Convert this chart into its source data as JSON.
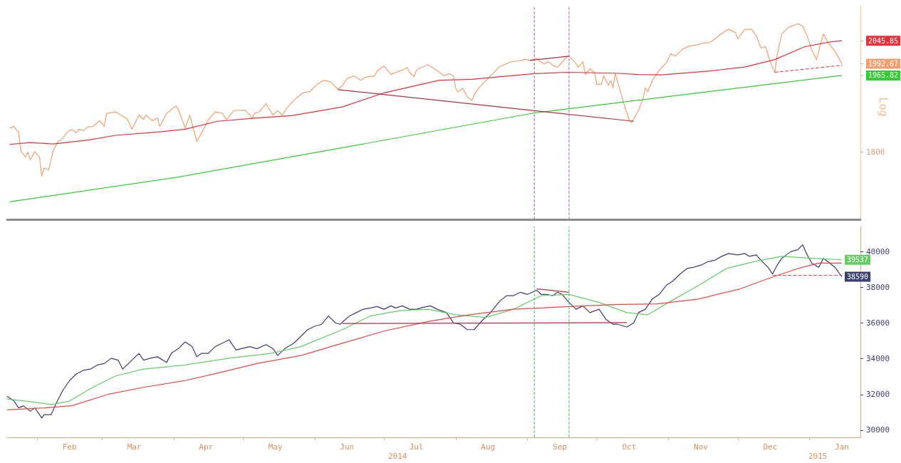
{
  "chart_data": [
    {
      "type": "line",
      "log": true,
      "ylabel": "Log",
      "xlim": [
        "2014-01-19",
        "2015-01-23"
      ],
      "ylim": [
        1666,
        2130
      ],
      "yticks": [
        1800,
        1965.82,
        1992.67,
        2045.85
      ],
      "tick_labels": "y",
      "ref_lines": [
        {
          "axis": "x",
          "value": "2014-09-04",
          "color": "#9966aa",
          "line_style": "dashed"
        },
        {
          "axis": "x",
          "value": "2014-09-19",
          "color": "#9966aa",
          "line_style": "dashed"
        }
      ],
      "series": [
        {
          "color": "#f0a070",
          "x": [
            "2014-01-20",
            "2014-01-22",
            "2014-01-24",
            "2014-01-25",
            "2014-01-27",
            "2014-01-28",
            "2014-01-29",
            "2014-01-31",
            "2014-02-02",
            "2014-02-03",
            "2014-02-04",
            "2014-02-06",
            "2014-02-08",
            "2014-02-10",
            "2014-02-12",
            "2014-02-14",
            "2014-02-16",
            "2014-02-18",
            "2014-02-19",
            "2014-02-21",
            "2014-02-23",
            "2014-02-25",
            "2014-02-28",
            "2014-03-02",
            "2014-03-03",
            "2014-03-07",
            "2014-03-10",
            "2014-03-12",
            "2014-03-14",
            "2014-03-17",
            "2014-03-19",
            "2014-03-20",
            "2014-03-23",
            "2014-03-25",
            "2014-03-26",
            "2014-03-29",
            "2014-04-02",
            "2014-04-03",
            "2014-04-06",
            "2014-04-08",
            "2014-04-11",
            "2014-04-14",
            "2014-04-16",
            "2014-04-19",
            "2014-04-22",
            "2014-04-24",
            "2014-04-27",
            "2014-05-02",
            "2014-05-05",
            "2014-05-06",
            "2014-05-08",
            "2014-05-11",
            "2014-05-14",
            "2014-05-16",
            "2014-05-18",
            "2014-05-20",
            "2014-05-24",
            "2014-05-27",
            "2014-05-30",
            "2014-06-02",
            "2014-06-05",
            "2014-06-08",
            "2014-06-11",
            "2014-06-13",
            "2014-06-15",
            "2014-06-18",
            "2014-06-21",
            "2014-06-23",
            "2014-06-27",
            "2014-06-28",
            "2014-07-01",
            "2014-07-04",
            "2014-07-06",
            "2014-07-09",
            "2014-07-11",
            "2014-07-12",
            "2014-07-14",
            "2014-07-15",
            "2014-07-17",
            "2014-07-20",
            "2014-07-22",
            "2014-07-25",
            "2014-07-27",
            "2014-07-29",
            "2014-07-31",
            "2014-08-01",
            "2014-08-02",
            "2014-08-04",
            "2014-08-06",
            "2014-08-08",
            "2014-08-09",
            "2014-08-11",
            "2014-08-14",
            "2014-08-17",
            "2014-08-20",
            "2014-08-25",
            "2014-08-29",
            "2014-08-31",
            "2014-09-02",
            "2014-09-05",
            "2014-09-08",
            "2014-09-10",
            "2014-09-12",
            "2014-09-14",
            "2014-09-18",
            "2014-09-19",
            "2014-09-22",
            "2014-09-23",
            "2014-09-25",
            "2014-09-26",
            "2014-09-28",
            "2014-09-30",
            "2014-10-01",
            "2014-10-03",
            "2014-10-04",
            "2014-10-06",
            "2014-10-07",
            "2014-10-08",
            "2014-10-09",
            "2014-10-11",
            "2014-10-13",
            "2014-10-15",
            "2014-10-16",
            "2014-10-19",
            "2014-10-21",
            "2014-10-22",
            "2014-10-23",
            "2014-10-25",
            "2014-10-27",
            "2014-10-29",
            "2014-10-31",
            "2014-11-02",
            "2014-11-04",
            "2014-11-07",
            "2014-11-10",
            "2014-11-13",
            "2014-11-16",
            "2014-11-19",
            "2014-11-21",
            "2014-11-25",
            "2014-11-27",
            "2014-11-30",
            "2014-12-01",
            "2014-12-04",
            "2014-12-07",
            "2014-12-09",
            "2014-12-11",
            "2014-12-13",
            "2014-12-15",
            "2014-12-17",
            "2014-12-18",
            "2014-12-20",
            "2014-12-23",
            "2014-12-27",
            "2014-12-29",
            "2014-12-31",
            "2015-01-02",
            "2015-01-04",
            "2015-01-07",
            "2015-01-09",
            "2015-01-12",
            "2015-01-15"
          ],
          "values": [
            1850,
            1854,
            1840,
            1801,
            1790,
            1800,
            1784,
            1801,
            1790,
            1751,
            1767,
            1764,
            1804,
            1822,
            1828,
            1842,
            1848,
            1840,
            1848,
            1845,
            1853,
            1854,
            1866,
            1854,
            1882,
            1885,
            1876,
            1869,
            1848,
            1878,
            1869,
            1878,
            1866,
            1872,
            1854,
            1882,
            1898,
            1891,
            1851,
            1878,
            1822,
            1848,
            1868,
            1885,
            1882,
            1869,
            1888,
            1889,
            1872,
            1882,
            1885,
            1903,
            1878,
            1888,
            1878,
            1894,
            1915,
            1927,
            1930,
            1946,
            1955,
            1951,
            1935,
            1943,
            1959,
            1965,
            1955,
            1962,
            1965,
            1976,
            1987,
            1968,
            1973,
            1978,
            1984,
            1973,
            1963,
            1978,
            1984,
            1990,
            1984,
            1973,
            1965,
            1970,
            1965,
            1937,
            1929,
            1937,
            1918,
            1910,
            1923,
            1938,
            1954,
            1970,
            1986,
            1997,
            2000,
            2003,
            2000,
            2005,
            1992,
            1997,
            1989,
            1984,
            2008,
            2010,
            1994,
            1984,
            1997,
            1968,
            1981,
            1973,
            1946,
            1946,
            1965,
            1944,
            1954,
            1938,
            1970,
            1934,
            1898,
            1868,
            1862,
            1888,
            1914,
            1938,
            1929,
            1954,
            1970,
            1984,
            1994,
            2016,
            2010,
            2026,
            2033,
            2036,
            2040,
            2042,
            2050,
            2067,
            2073,
            2065,
            2050,
            2073,
            2073,
            2057,
            2029,
            2032,
            1997,
            1973,
            2013,
            2062,
            2078,
            2086,
            2081,
            2057,
            2024,
            2002,
            2062,
            2042,
            2021,
            1992.67
          ]
        },
        {
          "color": "#e8303c",
          "x": [
            "2014-01-20",
            "2014-01-29",
            "2014-02-08",
            "2014-02-23",
            "2014-03-07",
            "2014-03-25",
            "2014-04-06",
            "2014-04-20",
            "2014-05-07",
            "2014-05-22",
            "2014-06-13",
            "2014-07-01",
            "2014-07-25",
            "2014-08-08",
            "2014-08-18",
            "2014-09-04",
            "2014-09-18",
            "2014-10-09",
            "2014-10-19",
            "2014-10-29",
            "2014-11-19",
            "2014-12-04",
            "2014-12-17",
            "2014-12-30",
            "2015-01-10",
            "2015-01-15"
          ],
          "values": [
            1816,
            1820,
            1817,
            1825,
            1835,
            1842,
            1848,
            1865,
            1872,
            1877,
            1896,
            1927,
            1955,
            1957,
            1962,
            1970,
            1973,
            1971,
            1968,
            1967,
            1976,
            1985,
            2002,
            2032,
            2043,
            2045.85
          ]
        },
        {
          "color": "#33cc33",
          "x": [
            "2014-01-20",
            "2014-04-03",
            "2014-06-13",
            "2014-09-04",
            "2014-11-19",
            "2015-01-15"
          ],
          "values": [
            1700,
            1749,
            1809,
            1883,
            1930,
            1965.82
          ]
        },
        {
          "color": "#b03040",
          "x": [
            "2014-06-11",
            "2014-10-17"
          ],
          "values": [
            1934,
            1865
          ]
        },
        {
          "color": "#b03040",
          "x": [
            "2014-09-02",
            "2014-09-19"
          ],
          "values": [
            2000,
            2010
          ]
        },
        {
          "color": "#e8303c",
          "line_style": "dashed",
          "x": [
            "2014-12-17",
            "2015-01-15"
          ],
          "values": [
            1973,
            1989
          ]
        }
      ]
    },
    {
      "type": "line",
      "xlim": [
        "2014-01-19",
        "2015-01-23"
      ],
      "ylim": [
        29600,
        41400
      ],
      "yticks": [
        30000,
        32000,
        34000,
        36000,
        38000,
        40000
      ],
      "xticks": [
        {
          "value": "2014-02-01",
          "label": null
        },
        {
          "value": "2014-02-15",
          "label": "Feb"
        },
        {
          "value": "2014-03-01",
          "label": null
        },
        {
          "value": "2014-03-15",
          "label": "Mar"
        },
        {
          "value": "2014-04-01",
          "label": null
        },
        {
          "value": "2014-04-15",
          "label": "Apr"
        },
        {
          "value": "2014-05-01",
          "label": null
        },
        {
          "value": "2014-05-15",
          "label": "May"
        },
        {
          "value": "2014-06-01",
          "label": null
        },
        {
          "value": "2014-06-15",
          "label": "Jun"
        },
        {
          "value": "2014-07-01",
          "label": null
        },
        {
          "value": "2014-07-15",
          "label": "Jul"
        },
        {
          "value": "2014-08-01",
          "label": null
        },
        {
          "value": "2014-08-15",
          "label": "Aug"
        },
        {
          "value": "2014-09-01",
          "label": null
        },
        {
          "value": "2014-09-15",
          "label": "Sep"
        },
        {
          "value": "2014-10-01",
          "label": null
        },
        {
          "value": "2014-10-15",
          "label": "Oct"
        },
        {
          "value": "2014-11-01",
          "label": null
        },
        {
          "value": "2014-11-15",
          "label": "Nov"
        },
        {
          "value": "2014-12-01",
          "label": null
        },
        {
          "value": "2014-12-15",
          "label": "Dec"
        },
        {
          "value": "2015-01-01",
          "label": null
        },
        {
          "value": "2015-01-15",
          "label": "Jan"
        }
      ],
      "annotations": [
        "2014",
        "2015"
      ],
      "ref_lines": [
        {
          "axis": "x",
          "value": "2014-09-04",
          "color": "#44bb66",
          "line_style": "dashed"
        },
        {
          "axis": "x",
          "value": "2014-09-19",
          "color": "#44bb66",
          "line_style": "dashed"
        }
      ],
      "series": [
        {
          "color": "#3b3f70",
          "x": [
            "2014-01-19",
            "2014-01-22",
            "2014-01-24",
            "2014-01-26",
            "2014-01-29",
            "2014-01-31",
            "2014-02-03",
            "2014-02-04",
            "2014-02-07",
            "2014-02-09",
            "2014-02-12",
            "2014-02-15",
            "2014-02-18",
            "2014-02-21",
            "2014-02-24",
            "2014-02-27",
            "2014-03-02",
            "2014-03-05",
            "2014-03-08",
            "2014-03-10",
            "2014-03-13",
            "2014-03-17",
            "2014-03-19",
            "2014-03-22",
            "2014-03-25",
            "2014-03-29",
            "2014-03-31",
            "2014-04-03",
            "2014-04-06",
            "2014-04-09",
            "2014-04-11",
            "2014-04-13",
            "2014-04-16",
            "2014-04-19",
            "2014-04-22",
            "2014-04-25",
            "2014-04-28",
            "2014-04-30",
            "2014-05-04",
            "2014-05-07",
            "2014-05-11",
            "2014-05-14",
            "2014-05-16",
            "2014-05-19",
            "2014-05-23",
            "2014-05-26",
            "2014-05-29",
            "2014-06-01",
            "2014-06-04",
            "2014-06-07",
            "2014-06-10",
            "2014-06-12",
            "2014-06-16",
            "2014-06-19",
            "2014-06-22",
            "2014-06-25",
            "2014-06-28",
            "2014-07-01",
            "2014-07-04",
            "2014-07-06",
            "2014-07-09",
            "2014-07-12",
            "2014-07-15",
            "2014-07-18",
            "2014-07-21",
            "2014-07-24",
            "2014-07-28",
            "2014-07-31",
            "2014-08-03",
            "2014-08-06",
            "2014-08-09",
            "2014-08-12",
            "2014-08-16",
            "2014-08-20",
            "2014-08-23",
            "2014-08-26",
            "2014-08-29",
            "2014-09-01",
            "2014-09-05",
            "2014-09-07",
            "2014-09-09",
            "2014-09-12",
            "2014-09-14",
            "2014-09-16",
            "2014-09-19",
            "2014-09-22",
            "2014-09-25",
            "2014-09-28",
            "2014-10-02",
            "2014-10-05",
            "2014-10-08",
            "2014-10-10",
            "2014-10-14",
            "2014-10-17",
            "2014-10-19",
            "2014-10-22",
            "2014-10-25",
            "2014-10-28",
            "2014-10-31",
            "2014-11-03",
            "2014-11-06",
            "2014-11-09",
            "2014-11-12",
            "2014-11-15",
            "2014-11-18",
            "2014-11-21",
            "2014-11-24",
            "2014-11-27",
            "2014-12-01",
            "2014-12-04",
            "2014-12-06",
            "2014-12-09",
            "2014-12-11",
            "2014-12-14",
            "2014-12-16",
            "2014-12-18",
            "2014-12-20",
            "2014-12-22",
            "2014-12-24",
            "2014-12-27",
            "2014-12-29",
            "2014-12-31",
            "2015-01-02",
            "2015-01-05",
            "2015-01-07",
            "2015-01-09",
            "2015-01-12",
            "2015-01-15"
          ],
          "values": [
            31900,
            31630,
            31250,
            31370,
            31060,
            31250,
            30680,
            30870,
            30870,
            31440,
            32210,
            32780,
            33160,
            33350,
            33420,
            33650,
            33730,
            34030,
            33920,
            33420,
            33800,
            34300,
            33920,
            34030,
            34110,
            33800,
            34300,
            34560,
            34940,
            34680,
            34110,
            34300,
            34300,
            34680,
            34870,
            35060,
            34490,
            34560,
            34680,
            34560,
            34790,
            34560,
            34180,
            34560,
            34870,
            35250,
            35630,
            35820,
            35930,
            36390,
            36010,
            35930,
            36390,
            36580,
            36770,
            36840,
            36920,
            36770,
            36960,
            36840,
            36960,
            36770,
            36770,
            36880,
            36960,
            36770,
            36580,
            36010,
            35930,
            35630,
            35630,
            36080,
            36580,
            37220,
            37530,
            37530,
            37720,
            37600,
            37830,
            37600,
            37600,
            37530,
            37720,
            37600,
            37150,
            36770,
            36960,
            36580,
            36770,
            36200,
            35930,
            35930,
            35780,
            36010,
            36580,
            36770,
            37340,
            37600,
            38100,
            38360,
            38740,
            39050,
            39120,
            39240,
            39430,
            39510,
            39730,
            39890,
            39810,
            39890,
            39730,
            39810,
            39510,
            39120,
            38740,
            39240,
            39620,
            39810,
            40000,
            40110,
            40380,
            39810,
            39350,
            39120,
            39620,
            39430,
            39120,
            38590
          ],
          "value_labels": [
            null,
            null,
            null,
            null,
            null,
            null,
            null,
            null,
            null,
            null,
            null,
            null,
            null,
            null,
            null,
            null,
            null,
            null,
            null,
            null,
            null,
            null,
            null,
            null,
            null,
            null,
            null,
            null,
            null,
            null,
            null,
            null,
            null,
            null,
            null,
            null,
            null,
            null,
            null,
            null,
            null,
            null,
            null,
            null,
            null,
            null,
            null,
            null,
            null,
            null,
            null,
            null,
            null,
            null,
            null,
            null,
            null,
            null,
            null,
            null,
            null,
            null,
            null,
            null,
            null,
            null,
            null,
            null,
            null,
            null,
            null,
            null,
            null,
            null,
            null,
            null,
            null,
            null,
            null,
            null,
            null,
            null,
            null,
            null,
            null,
            null,
            null,
            null,
            null,
            null,
            null,
            null,
            null,
            null,
            null,
            null,
            null,
            null,
            null,
            null,
            null,
            null,
            null,
            null,
            null,
            null,
            null,
            null,
            null,
            null,
            null,
            null,
            null,
            null,
            null,
            null,
            null,
            null,
            null,
            null,
            null,
            null,
            null,
            null,
            null,
            null,
            null,
            "38590"
          ]
        },
        {
          "color": "#66cc66",
          "x": [
            "2014-01-19",
            "2014-01-29",
            "2014-02-07",
            "2014-02-15",
            "2014-02-25",
            "2014-03-07",
            "2014-03-19",
            "2014-04-06",
            "2014-04-25",
            "2014-05-13",
            "2014-05-26",
            "2014-06-13",
            "2014-06-25",
            "2014-07-08",
            "2014-07-20",
            "2014-08-01",
            "2014-08-14",
            "2014-08-26",
            "2014-09-07",
            "2014-09-19",
            "2014-10-02",
            "2014-10-14",
            "2014-10-23",
            "2014-11-01",
            "2014-11-14",
            "2014-11-26",
            "2014-12-08",
            "2014-12-20",
            "2015-01-02",
            "2015-01-15"
          ],
          "values": [
            31750,
            31600,
            31440,
            31630,
            32400,
            33040,
            33420,
            33650,
            34030,
            34300,
            34680,
            35630,
            36390,
            36690,
            36770,
            36460,
            36310,
            36770,
            37530,
            37600,
            37150,
            36580,
            36460,
            37150,
            38100,
            39050,
            39430,
            39730,
            39620,
            39537
          ],
          "value_labels": [
            null,
            null,
            null,
            null,
            null,
            null,
            null,
            null,
            null,
            null,
            null,
            null,
            null,
            null,
            null,
            null,
            null,
            null,
            null,
            null,
            null,
            null,
            null,
            null,
            null,
            null,
            null,
            null,
            null,
            "39537"
          ]
        },
        {
          "color": "#e84848",
          "x": [
            "2014-01-19",
            "2014-02-04",
            "2014-02-16",
            "2014-03-04",
            "2014-03-19",
            "2014-04-06",
            "2014-04-19",
            "2014-05-07",
            "2014-05-26",
            "2014-06-13",
            "2014-07-01",
            "2014-07-20",
            "2014-08-07",
            "2014-08-26",
            "2014-09-19",
            "2014-10-08",
            "2014-10-27",
            "2014-11-14",
            "2014-12-02",
            "2014-12-14",
            "2014-12-27",
            "2015-01-05",
            "2015-01-15"
          ],
          "values": [
            31140,
            31250,
            31370,
            32020,
            32400,
            32780,
            33160,
            33730,
            34180,
            34870,
            35550,
            36080,
            36460,
            36770,
            36920,
            37030,
            37070,
            37340,
            37910,
            38480,
            39050,
            39350,
            39350
          ]
        },
        {
          "color": "#b03040",
          "x": [
            "2014-06-13",
            "2014-10-14"
          ],
          "values": [
            35970,
            36020
          ]
        },
        {
          "color": "#b03040",
          "x": [
            "2014-09-05",
            "2014-09-19"
          ],
          "values": [
            37910,
            37720
          ]
        },
        {
          "color": "#e84848",
          "line_style": "dashed",
          "x": [
            "2014-12-16",
            "2015-01-15"
          ],
          "values": [
            38670,
            38670
          ]
        }
      ]
    }
  ]
}
